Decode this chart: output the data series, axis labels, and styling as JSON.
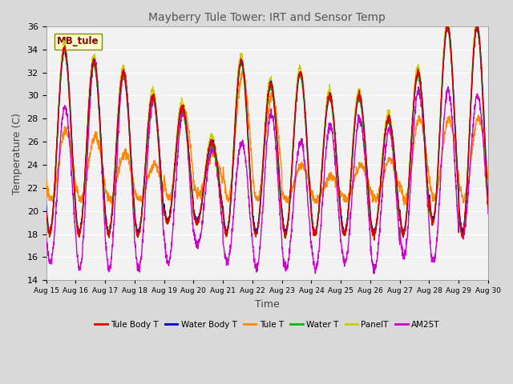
{
  "title": "Mayberry Tule Tower: IRT and Sensor Temp",
  "ylabel": "Temperature (C)",
  "xlabel": "Time",
  "ylim": [
    14,
    36
  ],
  "yticks": [
    14,
    16,
    18,
    20,
    22,
    24,
    26,
    28,
    30,
    32,
    34,
    36
  ],
  "xtick_labels": [
    "Aug 15",
    "Aug 16",
    "Aug 17",
    "Aug 18",
    "Aug 19",
    "Aug 20",
    "Aug 21",
    "Aug 22",
    "Aug 23",
    "Aug 24",
    "Aug 25",
    "Aug 26",
    "Aug 27",
    "Aug 28",
    "Aug 29",
    "Aug 30"
  ],
  "series": {
    "Tule Body T": {
      "color": "#dd0000",
      "lw": 1.0
    },
    "Water Body T": {
      "color": "#0000cc",
      "lw": 1.0
    },
    "Tule T": {
      "color": "#ff8800",
      "lw": 1.0
    },
    "Water T": {
      "color": "#00bb00",
      "lw": 1.0
    },
    "PanelT": {
      "color": "#cccc00",
      "lw": 1.0
    },
    "AM25T": {
      "color": "#cc00cc",
      "lw": 1.0
    }
  },
  "annotation_text": "MB_tule",
  "background_color": "#d9d9d9",
  "plot_bg_color": "#f2f2f2",
  "title_color": "#555555",
  "grid_color": "#ffffff"
}
